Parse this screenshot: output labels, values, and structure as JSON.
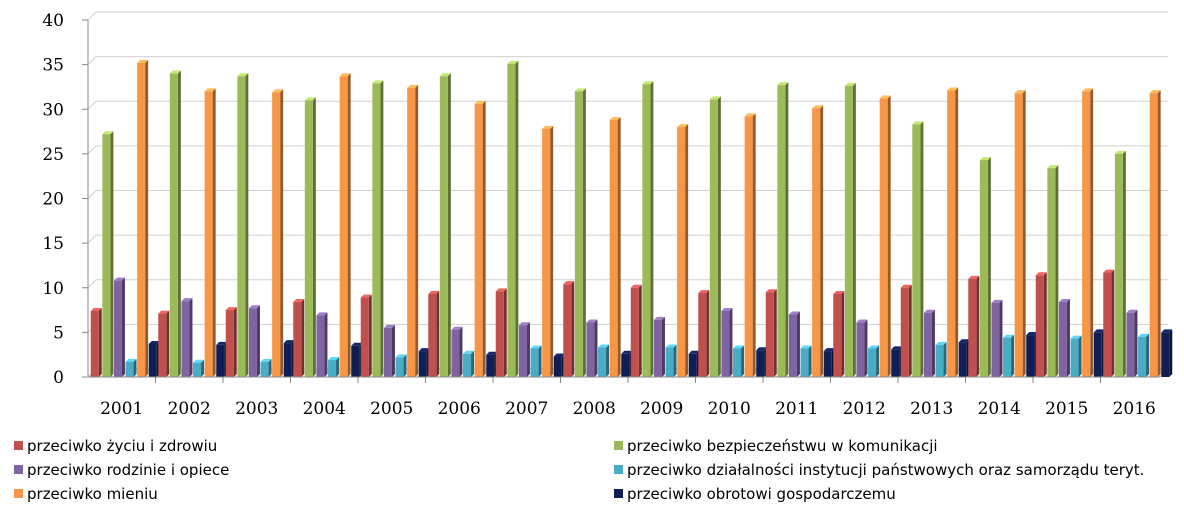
{
  "chart_data": {
    "type": "bar",
    "categories": [
      "2001",
      "2002",
      "2003",
      "2004",
      "2005",
      "2006",
      "2007",
      "2008",
      "2009",
      "2010",
      "2011",
      "2012",
      "2013",
      "2014",
      "2015",
      "2016"
    ],
    "ylim": [
      0,
      40
    ],
    "yticks": [
      0,
      5,
      10,
      15,
      20,
      25,
      30,
      35,
      40
    ],
    "grid": true,
    "legend_position": "bottom",
    "series": [
      {
        "name": "przeciwko życiu i zdrowiu",
        "color": "#c0504d",
        "values": [
          7.4,
          7.1,
          7.5,
          8.4,
          8.9,
          9.3,
          9.6,
          10.4,
          10.0,
          9.4,
          9.5,
          9.3,
          10.0,
          11.0,
          11.4,
          11.7
        ]
      },
      {
        "name": "przeciwko  bezpieczeństwu w komunikacji",
        "color": "#9bbb59",
        "values": [
          27.2,
          34.0,
          33.7,
          31.0,
          32.9,
          33.7,
          35.1,
          32.0,
          32.8,
          31.1,
          32.7,
          32.6,
          28.3,
          24.3,
          23.4,
          25.0
        ]
      },
      {
        "name": "przeciwko  rodzinie i opiece",
        "color": "#8064a2",
        "values": [
          10.8,
          8.5,
          7.7,
          6.9,
          5.5,
          5.3,
          5.8,
          6.1,
          6.4,
          7.4,
          7.0,
          6.1,
          7.2,
          8.3,
          8.4,
          7.2
        ]
      },
      {
        "name": "przeciwko działalności instytucji państwowych oraz samorządu teryt.",
        "color": "#4bacc6",
        "values": [
          1.7,
          1.6,
          1.7,
          1.9,
          2.2,
          2.6,
          3.2,
          3.3,
          3.3,
          3.2,
          3.2,
          3.2,
          3.6,
          4.4,
          4.3,
          4.5
        ]
      },
      {
        "name": "przeciwko mieniu",
        "color": "#f79646",
        "values": [
          35.2,
          32.0,
          31.9,
          33.7,
          32.4,
          30.6,
          27.8,
          28.8,
          28.0,
          29.2,
          30.1,
          31.2,
          32.1,
          31.8,
          32.0,
          31.8
        ]
      },
      {
        "name": "przeciwko obrotowi gospodarczemu",
        "color": "#0f1f55",
        "values": [
          3.7,
          3.6,
          3.8,
          3.5,
          2.9,
          2.5,
          2.3,
          2.6,
          2.6,
          3.0,
          2.9,
          3.1,
          3.9,
          4.7,
          5.0,
          5.0
        ]
      }
    ]
  }
}
